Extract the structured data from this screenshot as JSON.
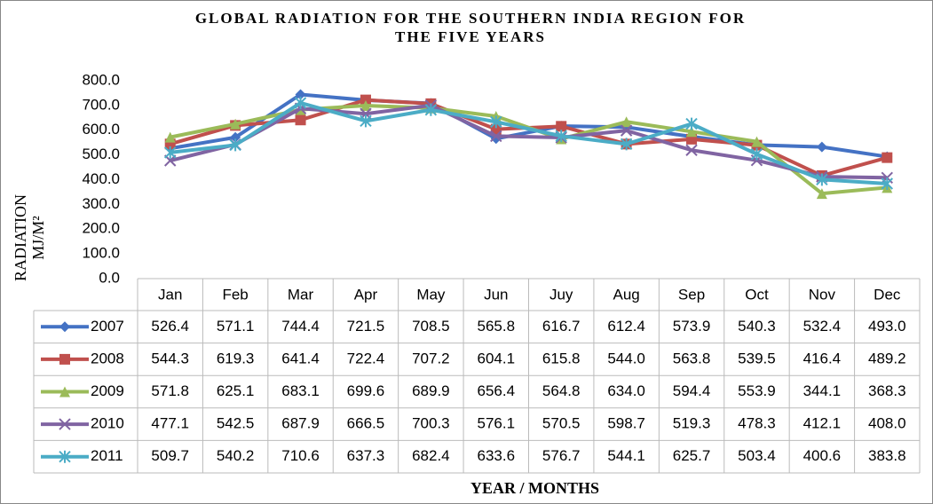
{
  "chart_data": {
    "type": "line",
    "title": "GLOBAL RADIATION FOR THE SOUTHERN INDIA REGION FOR THE FIVE YEARS",
    "ylabel": "RADIATION MJ/M²",
    "xlabel": "YEAR / MONTHS",
    "categories": [
      "Jan",
      "Feb",
      "Mar",
      "Apr",
      "May",
      "Jun",
      "Juy",
      "Aug",
      "Sep",
      "Oct",
      "Nov",
      "Dec"
    ],
    "ylim": [
      0,
      800
    ],
    "yticks": [
      {
        "value": 0,
        "label": "0.0"
      },
      {
        "value": 100,
        "label": "100.0"
      },
      {
        "value": 200,
        "label": "200.0"
      },
      {
        "value": 300,
        "label": "300.0"
      },
      {
        "value": 400,
        "label": "400.0"
      },
      {
        "value": 500,
        "label": "500.0"
      },
      {
        "value": 600,
        "label": "600.0"
      },
      {
        "value": 700,
        "label": "700.0"
      },
      {
        "value": 800,
        "label": "800.0"
      }
    ],
    "data_table": true,
    "series": [
      {
        "name": "2007",
        "color": "#4472c4",
        "marker": "diamond",
        "values": [
          526.4,
          571.1,
          744.4,
          721.5,
          708.5,
          565.8,
          616.7,
          612.4,
          573.9,
          540.3,
          532.4,
          493.0
        ],
        "value_labels": [
          "526.4",
          "571.1",
          "744.4",
          "721.5",
          "708.5",
          "565.8",
          "616.7",
          "612.4",
          "573.9",
          "540.3",
          "532.4",
          "493.0"
        ]
      },
      {
        "name": "2008",
        "color": "#c0504d",
        "marker": "square",
        "values": [
          544.3,
          619.3,
          641.4,
          722.4,
          707.2,
          604.1,
          615.8,
          544.0,
          563.8,
          539.5,
          416.4,
          489.2
        ],
        "value_labels": [
          "544.3",
          "619.3",
          "641.4",
          "722.4",
          "707.2",
          "604.1",
          "615.8",
          "544.0",
          "563.8",
          "539.5",
          "416.4",
          "489.2"
        ]
      },
      {
        "name": "2009",
        "color": "#9bbb59",
        "marker": "triangle",
        "values": [
          571.8,
          625.1,
          683.1,
          699.6,
          689.9,
          656.4,
          564.8,
          634.0,
          594.4,
          553.9,
          344.1,
          368.3
        ],
        "value_labels": [
          "571.8",
          "625.1",
          "683.1",
          "699.6",
          "689.9",
          "656.4",
          "564.8",
          "634.0",
          "594.4",
          "553.9",
          "344.1",
          "368.3"
        ]
      },
      {
        "name": "2010",
        "color": "#8064a2",
        "marker": "x",
        "values": [
          477.1,
          542.5,
          687.9,
          666.5,
          700.3,
          576.1,
          570.5,
          598.7,
          519.3,
          478.3,
          412.1,
          408.0
        ],
        "value_labels": [
          "477.1",
          "542.5",
          "687.9",
          "666.5",
          "700.3",
          "576.1",
          "570.5",
          "598.7",
          "519.3",
          "478.3",
          "412.1",
          "408.0"
        ]
      },
      {
        "name": "2011",
        "color": "#4bacc6",
        "marker": "star",
        "values": [
          509.7,
          540.2,
          710.6,
          637.3,
          682.4,
          633.6,
          576.7,
          544.1,
          625.7,
          503.4,
          400.6,
          383.8
        ],
        "value_labels": [
          "509.7",
          "540.2",
          "710.6",
          "637.3",
          "682.4",
          "633.6",
          "576.7",
          "544.1",
          "625.7",
          "503.4",
          "400.6",
          "383.8"
        ]
      }
    ]
  }
}
